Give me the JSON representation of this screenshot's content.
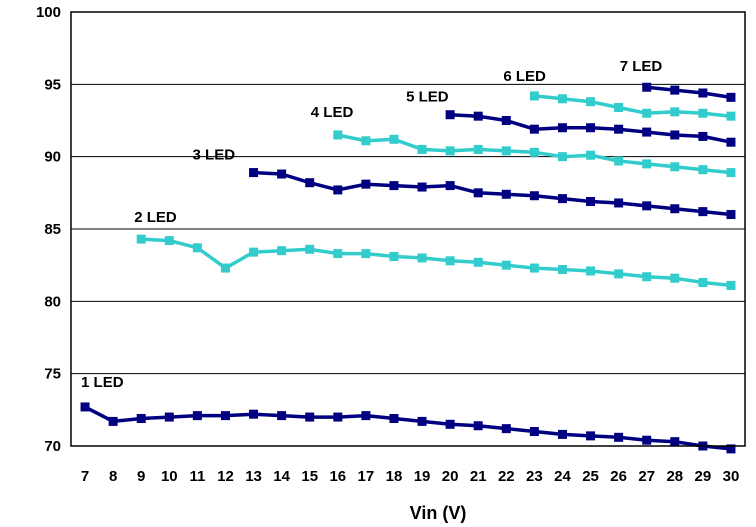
{
  "chart_data": {
    "type": "line",
    "xlabel": "Vin (V)",
    "ylabel": "",
    "xlim": [
      6.5,
      30.5
    ],
    "ylim": [
      70,
      100
    ],
    "x_ticks": [
      7,
      8,
      9,
      10,
      11,
      12,
      13,
      14,
      15,
      16,
      17,
      18,
      19,
      20,
      21,
      22,
      23,
      24,
      25,
      26,
      27,
      28,
      29,
      30
    ],
    "y_ticks": [
      70,
      75,
      80,
      85,
      90,
      95,
      100
    ],
    "grid": {
      "horizontal": true,
      "vertical": false
    },
    "legend": "none",
    "series": [
      {
        "name": "1 LED",
        "color": "#000080",
        "x": [
          7,
          8,
          9,
          10,
          11,
          12,
          13,
          14,
          15,
          16,
          17,
          18,
          19,
          20,
          21,
          22,
          23,
          24,
          25,
          26,
          27,
          28,
          29,
          30
        ],
        "y": [
          72.7,
          71.7,
          71.9,
          72.0,
          72.1,
          72.1,
          72.2,
          72.1,
          72.0,
          72.0,
          72.1,
          71.9,
          71.7,
          71.5,
          71.4,
          71.2,
          71.0,
          70.8,
          70.7,
          70.6,
          70.4,
          70.3,
          70.0,
          69.8
        ]
      },
      {
        "name": "2 LED",
        "color": "#33CCCC",
        "x": [
          9,
          10,
          11,
          12,
          13,
          14,
          15,
          16,
          17,
          18,
          19,
          20,
          21,
          22,
          23,
          24,
          25,
          26,
          27,
          28,
          29,
          30
        ],
        "y": [
          84.3,
          84.2,
          83.7,
          82.3,
          83.4,
          83.5,
          83.6,
          83.3,
          83.3,
          83.1,
          83.0,
          82.8,
          82.7,
          82.5,
          82.3,
          82.2,
          82.1,
          81.9,
          81.7,
          81.6,
          81.3,
          81.1
        ]
      },
      {
        "name": "3 LED",
        "color": "#000080",
        "x": [
          13,
          14,
          15,
          16,
          17,
          18,
          19,
          20,
          21,
          22,
          23,
          24,
          25,
          26,
          27,
          28,
          29,
          30
        ],
        "y": [
          88.9,
          88.8,
          88.2,
          87.7,
          88.1,
          88.0,
          87.9,
          88.0,
          87.5,
          87.4,
          87.3,
          87.1,
          86.9,
          86.8,
          86.6,
          86.4,
          86.2,
          86.0
        ]
      },
      {
        "name": "4 LED",
        "color": "#33CCCC",
        "x": [
          16,
          17,
          18,
          19,
          20,
          21,
          22,
          23,
          24,
          25,
          26,
          27,
          28,
          29,
          30
        ],
        "y": [
          91.5,
          91.1,
          91.2,
          90.5,
          90.4,
          90.5,
          90.4,
          90.3,
          90.0,
          90.1,
          89.7,
          89.5,
          89.3,
          89.1,
          88.9
        ]
      },
      {
        "name": "5 LED",
        "color": "#000080",
        "x": [
          20,
          21,
          22,
          23,
          24,
          25,
          26,
          27,
          28,
          29,
          30
        ],
        "y": [
          92.9,
          92.8,
          92.5,
          91.9,
          92.0,
          92.0,
          91.9,
          91.7,
          91.5,
          91.4,
          91.0
        ]
      },
      {
        "name": "6 LED",
        "color": "#33CCCC",
        "x": [
          23,
          24,
          25,
          26,
          27,
          28,
          29,
          30
        ],
        "y": [
          94.2,
          94.0,
          93.8,
          93.4,
          93.0,
          93.1,
          93.0,
          92.8
        ]
      },
      {
        "name": "7 LED",
        "color": "#000080",
        "x": [
          27,
          28,
          29,
          30
        ],
        "y": [
          94.8,
          94.6,
          94.4,
          94.1
        ]
      }
    ]
  }
}
